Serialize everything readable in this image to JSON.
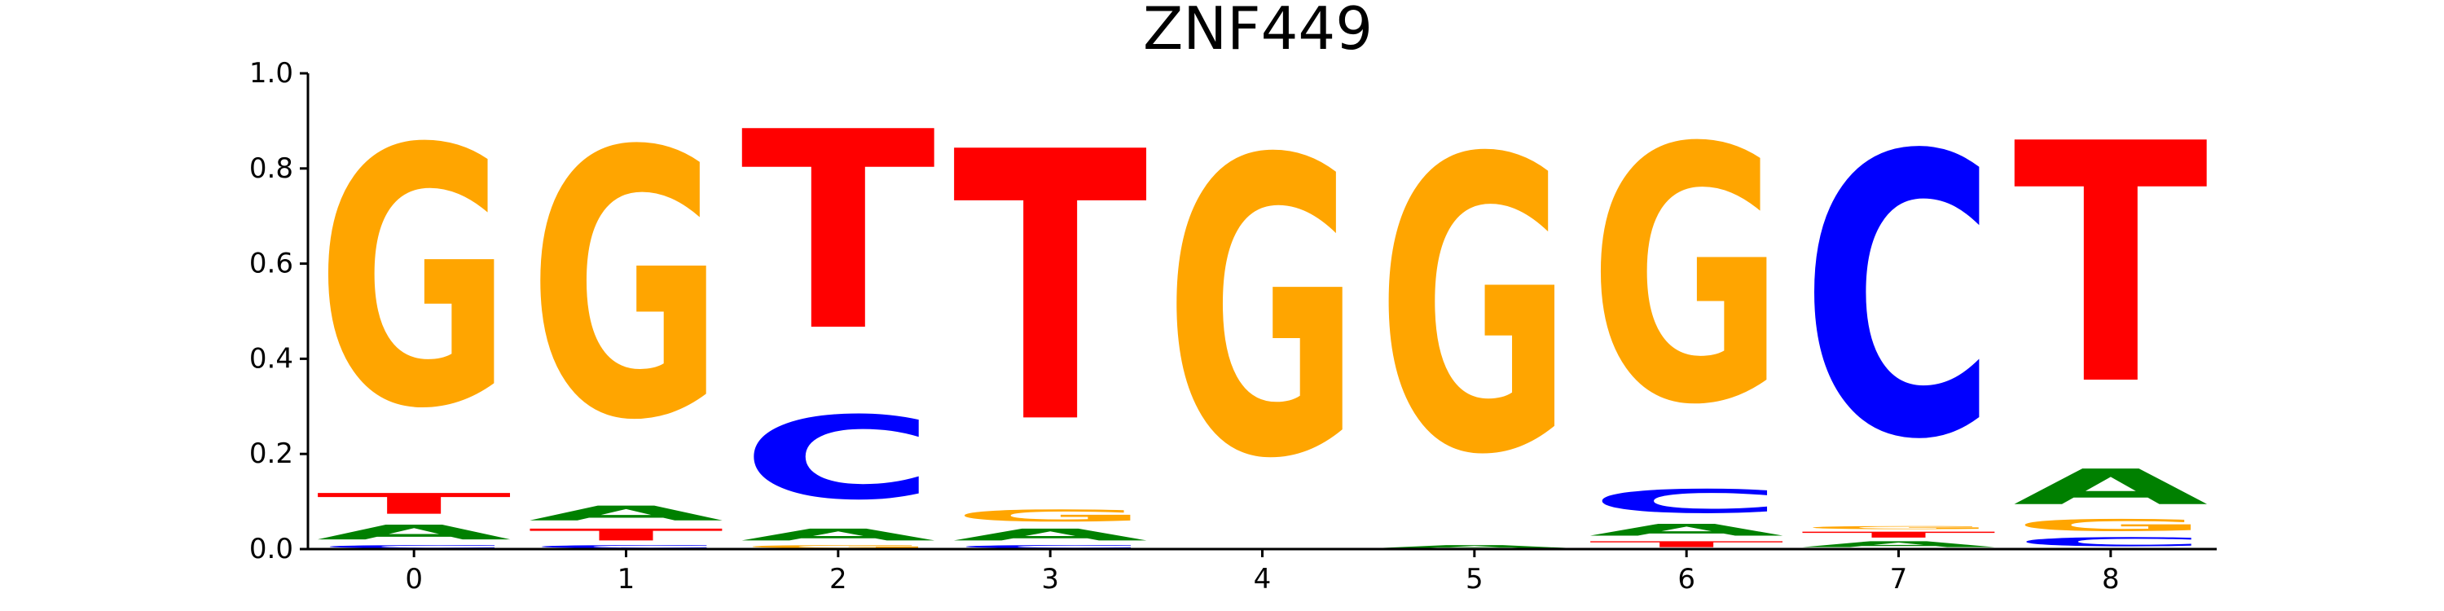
{
  "chart_data": {
    "type": "sequence-logo",
    "title": "ZNF449",
    "xlabel": "",
    "ylabel": "",
    "ylim": [
      0,
      1
    ],
    "y_ticks": [
      "0.0",
      "0.2",
      "0.4",
      "0.6",
      "0.8",
      "1.0"
    ],
    "x_ticks": [
      "0",
      "1",
      "2",
      "3",
      "4",
      "5",
      "6",
      "7",
      "8"
    ],
    "grid": false,
    "colors": {
      "A": "#008000",
      "C": "#0000ff",
      "G": "#ffa500",
      "T": "#ff0000"
    },
    "positions": [
      {
        "x": "0",
        "letters": [
          {
            "base": "C",
            "value": 0.01
          },
          {
            "base": "A",
            "value": 0.05
          },
          {
            "base": "T",
            "value": 0.07
          },
          {
            "base": "G",
            "value": 0.87
          }
        ]
      },
      {
        "x": "1",
        "letters": [
          {
            "base": "C",
            "value": 0.01
          },
          {
            "base": "T",
            "value": 0.04
          },
          {
            "base": "A",
            "value": 0.05
          },
          {
            "base": "G",
            "value": 0.9
          }
        ]
      },
      {
        "x": "2",
        "letters": [
          {
            "base": "G",
            "value": 0.01
          },
          {
            "base": "A",
            "value": 0.04
          },
          {
            "base": "C",
            "value": 0.28
          },
          {
            "base": "T",
            "value": 0.67
          }
        ]
      },
      {
        "x": "3",
        "letters": [
          {
            "base": "C",
            "value": 0.01
          },
          {
            "base": "A",
            "value": 0.04
          },
          {
            "base": "G",
            "value": 0.04
          },
          {
            "base": "T",
            "value": 0.91
          }
        ]
      },
      {
        "x": "4",
        "letters": [
          {
            "base": "G",
            "value": 1.0
          }
        ]
      },
      {
        "x": "5",
        "letters": [
          {
            "base": "A",
            "value": 0.01
          },
          {
            "base": "G",
            "value": 0.99
          }
        ]
      },
      {
        "x": "6",
        "letters": [
          {
            "base": "T",
            "value": 0.02
          },
          {
            "base": "A",
            "value": 0.04
          },
          {
            "base": "C",
            "value": 0.08
          },
          {
            "base": "G",
            "value": 0.86
          }
        ]
      },
      {
        "x": "7",
        "letters": [
          {
            "base": "A",
            "value": 0.02
          },
          {
            "base": "T",
            "value": 0.02
          },
          {
            "base": "G",
            "value": 0.01
          },
          {
            "base": "C",
            "value": 0.95
          }
        ]
      },
      {
        "x": "8",
        "letters": [
          {
            "base": "C",
            "value": 0.03
          },
          {
            "base": "G",
            "value": 0.04
          },
          {
            "base": "A",
            "value": 0.12
          },
          {
            "base": "T",
            "value": 0.81
          }
        ]
      }
    ]
  }
}
